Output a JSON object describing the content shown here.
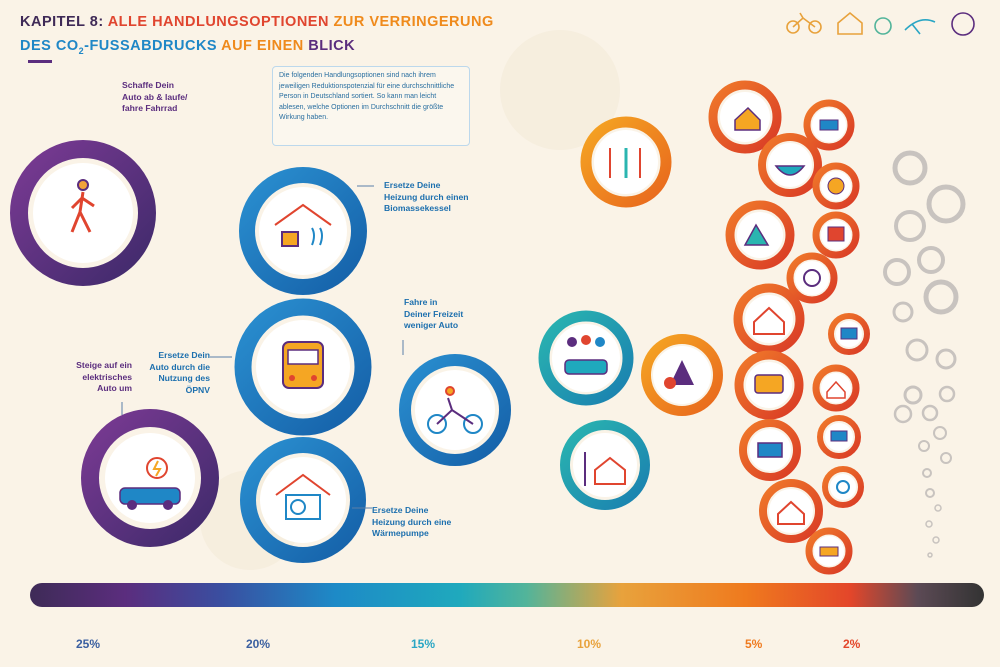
{
  "title": {
    "prefix": "KAPITEL 8:",
    "line1_red": "ALLE HANDLUNGSOPTIONEN",
    "line1_orange": "ZUR VERRINGERUNG",
    "line2_blue": "DES CO",
    "line2_sub": "2",
    "line2_blue_rest": "-FUSSABDRUCKS",
    "line2_orange": "AUF EINEN",
    "line2_purple": "BLICK"
  },
  "info_box": {
    "text": "Die folgenden Handlungsoptionen sind nach ihrem jeweiligen Reduktionspotenzial für eine durchschnittliche Person in Deutschland sortiert. So kann man leicht ablesen, welche Optionen im Durchschnitt die größte Wirkung haben."
  },
  "labels": {
    "walk_bike": [
      "Schaffe Dein",
      "Auto ab & laufe/",
      "fahre Fahrrad"
    ],
    "biomass": [
      "Ersetze Deine",
      "Heizung durch einen",
      "Biomassekessel"
    ],
    "ev": [
      "Steige auf ein",
      "elektrisches",
      "Auto um"
    ],
    "public_transport": [
      "Ersetze Dein",
      "Auto durch die",
      "Nutzung des",
      "ÖPNV"
    ],
    "leisure_car": [
      "Fahre in",
      "Deiner Freizeit",
      "weniger Auto"
    ],
    "heatpump": [
      "Ersetze Deine",
      "Heizung durch eine",
      "Wärmepumpe"
    ]
  },
  "scale": {
    "ticks": [
      "25%",
      "20%",
      "15%",
      "10%",
      "5%",
      "2%"
    ]
  },
  "header_icons": [
    "bicycle-icon",
    "house-icon",
    "apple-icon",
    "plane-icon",
    "leaf-icon"
  ],
  "colors": {
    "purple": "#5b2d7e",
    "blue": "#1f87c6",
    "teal": "#1fa9bd",
    "orange": "#ef8a1c",
    "red": "#e0452f",
    "grey": "#c8c3bf"
  }
}
